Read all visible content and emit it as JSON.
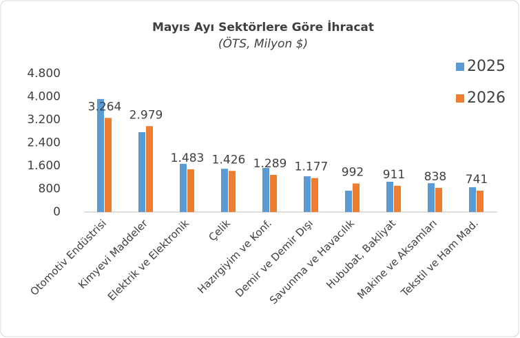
{
  "chart_data": {
    "type": "bar",
    "title": "Mayıs Ayı Sektörlere Göre İhracat",
    "subtitle": "(ÖTS, Milyon $)",
    "categories": [
      "Otomotiv Endüstrisi",
      "Kimyevi Maddeler",
      "Elektrik ve Elektronik",
      "Çelik",
      "Hazırgiyim ve Konf.",
      "Demir ve Demir Dışı",
      "Savunma ve Havacılık",
      "Hububat, Bakliyat",
      "Makine ve Aksamları",
      "Tekstil ve Ham Mad."
    ],
    "series": [
      {
        "name": "2025",
        "color": "#5b9bd5",
        "values": [
          3920,
          2770,
          1670,
          1500,
          1530,
          1240,
          740,
          1050,
          1000,
          860
        ]
      },
      {
        "name": "2026",
        "color": "#ed7d31",
        "values": [
          3264,
          2979,
          1483,
          1426,
          1289,
          1177,
          992,
          911,
          838,
          741
        ],
        "value_labels": [
          "3.264",
          "2.979",
          "1.483",
          "1.426",
          "1.289",
          "1.177",
          "992",
          "911",
          "838",
          "741"
        ]
      }
    ],
    "ylim": [
      0,
      4800
    ],
    "yticks": [
      0,
      {
        "value": 800,
        "label": "800"
      },
      {
        "value": 1600,
        "label": "1.600"
      },
      {
        "value": 2400,
        "label": "2.400"
      },
      {
        "value": 3200,
        "label": "3.200"
      },
      {
        "value": 4000,
        "label": "4.000"
      },
      {
        "value": 4800,
        "label": "4.800"
      }
    ],
    "grid": false,
    "legend": "top-right"
  }
}
